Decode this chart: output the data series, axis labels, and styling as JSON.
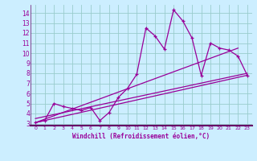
{
  "xlabel": "Windchill (Refroidissement éolien,°C)",
  "bg_color": "#cceeff",
  "grid_color": "#99cccc",
  "line_color": "#990099",
  "spine_color": "#660066",
  "xlim": [
    -0.5,
    23.5
  ],
  "ylim": [
    2.8,
    14.8
  ],
  "xticks": [
    0,
    1,
    2,
    3,
    4,
    5,
    6,
    7,
    8,
    9,
    10,
    11,
    12,
    13,
    14,
    15,
    16,
    17,
    18,
    19,
    20,
    21,
    22,
    23
  ],
  "yticks": [
    3,
    4,
    5,
    6,
    7,
    8,
    9,
    10,
    11,
    12,
    13,
    14
  ],
  "series1_x": [
    0,
    1,
    2,
    3,
    4,
    5,
    6,
    7,
    8,
    9,
    10,
    11,
    12,
    13,
    14,
    15,
    16,
    17,
    18,
    19,
    20,
    21,
    22,
    23
  ],
  "series1_y": [
    3.1,
    3.3,
    5.0,
    4.7,
    4.5,
    4.3,
    4.6,
    3.3,
    4.1,
    5.6,
    6.5,
    7.9,
    12.5,
    11.7,
    10.4,
    14.3,
    13.2,
    11.5,
    7.8,
    11.0,
    10.5,
    10.3,
    9.7,
    7.8
  ],
  "trend1_x": [
    0,
    23
  ],
  "trend1_y": [
    3.1,
    7.8
  ],
  "trend2_x": [
    0,
    22
  ],
  "trend2_y": [
    3.1,
    10.5
  ],
  "trend3_x": [
    0,
    23
  ],
  "trend3_y": [
    3.5,
    8.0
  ]
}
